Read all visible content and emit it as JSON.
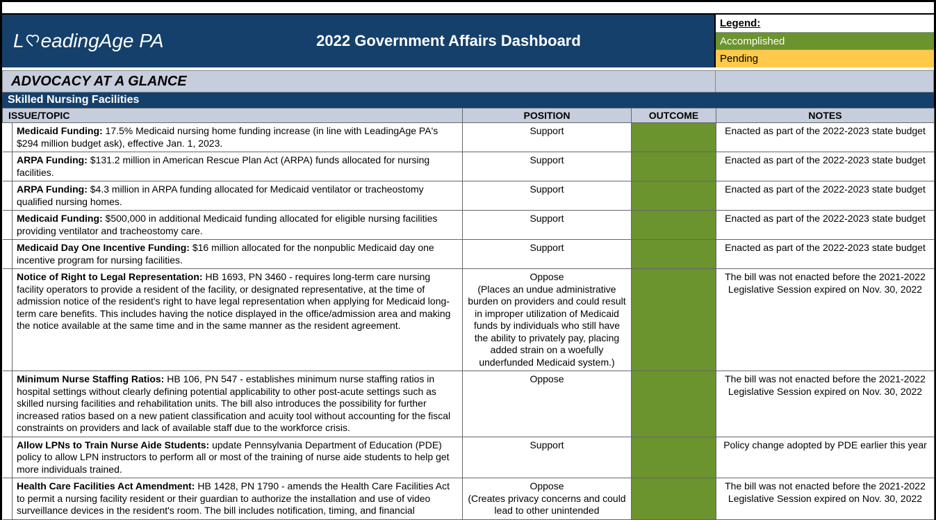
{
  "colors": {
    "brand_blue": "#14406b",
    "header_gray": "#c6cedd",
    "accomplished": "#6b932e",
    "pending": "#ffc94a"
  },
  "header": {
    "logo_text_1": "L",
    "logo_text_2": "eadingAge PA",
    "title": "2022 Government Affairs Dashboard"
  },
  "legend": {
    "title": "Legend:",
    "accomplished": "Accomplished",
    "pending": "Pending"
  },
  "advocacy_title": "ADVOCACY AT A GLANCE",
  "section_title": "Skilled Nursing Facilities",
  "columns": {
    "issue": "ISSUE/TOPIC",
    "position": "POSITION",
    "outcome": "OUTCOME",
    "notes": "NOTES"
  },
  "rows": [
    {
      "issue_b": "Medicaid Funding:",
      "issue_t": " 17.5% Medicaid nursing home funding increase (in line with LeadingAge PA's $294 million budget ask), effective Jan. 1, 2023.",
      "position": "Support",
      "position_note": "",
      "outcome_color": "#6b932e",
      "notes": "Enacted as part of the 2022-2023 state budget"
    },
    {
      "issue_b": "ARPA Funding:",
      "issue_t": " $131.2 million in American Rescue Plan Act (ARPA) funds allocated for nursing facilities.",
      "position": "Support",
      "position_note": "",
      "outcome_color": "#6b932e",
      "notes": "Enacted as part of the 2022-2023 state budget"
    },
    {
      "issue_b": "ARPA Funding:",
      "issue_t": " $4.3 million in ARPA funding allocated for Medicaid ventilator or tracheostomy qualified nursing homes.",
      "position": "Support",
      "position_note": "",
      "outcome_color": "#6b932e",
      "notes": "Enacted as part of the 2022-2023 state budget"
    },
    {
      "issue_b": "Medicaid Funding:",
      "issue_t": " $500,000 in additional Medicaid funding allocated for eligible nursing facilities providing ventilator and tracheostomy care.",
      "position": "Support",
      "position_note": "",
      "outcome_color": "#6b932e",
      "notes": "Enacted as part of the 2022-2023 state budget"
    },
    {
      "issue_b": "Medicaid Day One Incentive Funding:",
      "issue_t": " $16 million allocated for the nonpublic Medicaid day one incentive program for nursing facilities.",
      "position": "Support",
      "position_note": "",
      "outcome_color": "#6b932e",
      "notes": "Enacted as part of the 2022-2023 state budget"
    },
    {
      "issue_b": "Notice of Right to Legal Representation:",
      "issue_t": " HB 1693, PN 3460 - requires long-term care nursing facility operators to provide a resident of the facility, or designated representative, at the time of admission notice of the resident's right to have legal representation when applying for Medicaid long-term care benefits. This includes having the notice displayed in the office/admission area and making the notice available at the same time and in the same manner as the resident agreement.",
      "position": "Oppose",
      "position_note": "(Places an undue administrative burden on providers and could result in improper utilization of Medicaid funds by individuals who still have the ability to privately pay, placing added strain on a woefully underfunded Medicaid system.)",
      "outcome_color": "#6b932e",
      "notes": "The bill was not enacted before the 2021-2022 Legislative Session expired on Nov. 30, 2022"
    },
    {
      "issue_b": "Minimum Nurse Staffing Ratios:",
      "issue_t": " HB 106, PN 547 - establishes minimum nurse staffing ratios in hospital settings without clearly defining potential applicability to other post-acute settings such as skilled nursing facilities and rehabilitation units. The bill also introduces the possibility for further increased ratios based on a new patient classification and acuity tool without accounting for the fiscal constraints on providers and lack of available staff due to the workforce crisis.",
      "position": "Oppose",
      "position_note": "",
      "outcome_color": "#6b932e",
      "notes": "The bill was not enacted before the 2021-2022 Legislative Session expired on Nov. 30, 2022"
    },
    {
      "issue_b": "Allow LPNs to Train Nurse Aide Students:",
      "issue_t": " update Pennsylvania Department of Education (PDE) policy to allow LPN instructors to perform all or most of the training of nurse aide students to help get more individuals trained.",
      "position": "Support",
      "position_note": "",
      "outcome_color": "#6b932e",
      "notes": "Policy change adopted by PDE earlier this year"
    },
    {
      "issue_b": "Health Care Facilities Act Amendment:",
      "issue_t": " HB 1428, PN 1790 - amends the Health Care Facilities Act to permit a nursing facility resident or their guardian to authorize the installation and use of video surveillance devices in the resident's room. The bill includes notification, timing, and financial",
      "position": "Oppose",
      "position_note": "(Creates privacy concerns and could lead to other unintended",
      "outcome_color": "#6b932e",
      "notes": "The bill was not enacted before the 2021-2022 Legislative Session expired on Nov. 30, 2022"
    }
  ]
}
